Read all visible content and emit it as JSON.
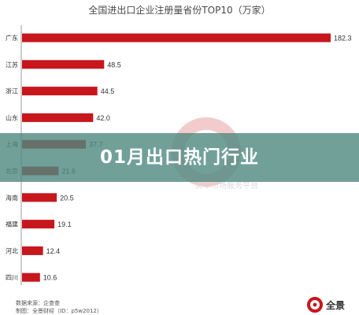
{
  "chart_data": {
    "type": "bar",
    "orientation": "horizontal",
    "title": "全国进出口企业注册量省份TOP10（万家）",
    "categories": [
      "广东",
      "江苏",
      "浙江",
      "山东",
      "上海",
      "北京",
      "海南",
      "福建",
      "河北",
      "四川"
    ],
    "values": [
      182.3,
      48.5,
      44.5,
      42.0,
      37.7,
      21.6,
      20.5,
      19.1,
      12.4,
      10.6
    ],
    "value_labels": [
      "182.3",
      "48.5",
      "44.5",
      "42.0",
      "37.7",
      "21.6",
      "20.5",
      "19.1",
      "12.4",
      "10.6"
    ],
    "xlim": [
      0,
      182.3
    ],
    "bar_color": "#c8161d",
    "grid": false,
    "legend": "none"
  },
  "overlay": {
    "title": "01月出口热门行业",
    "band_color": "#4e8880"
  },
  "watermark": {
    "text": "资本市场服务平台"
  },
  "footer": {
    "source": "数据来源：企查查",
    "producer": "制图：全景财经（ID：p5w2012）",
    "brand_name": "全景"
  }
}
